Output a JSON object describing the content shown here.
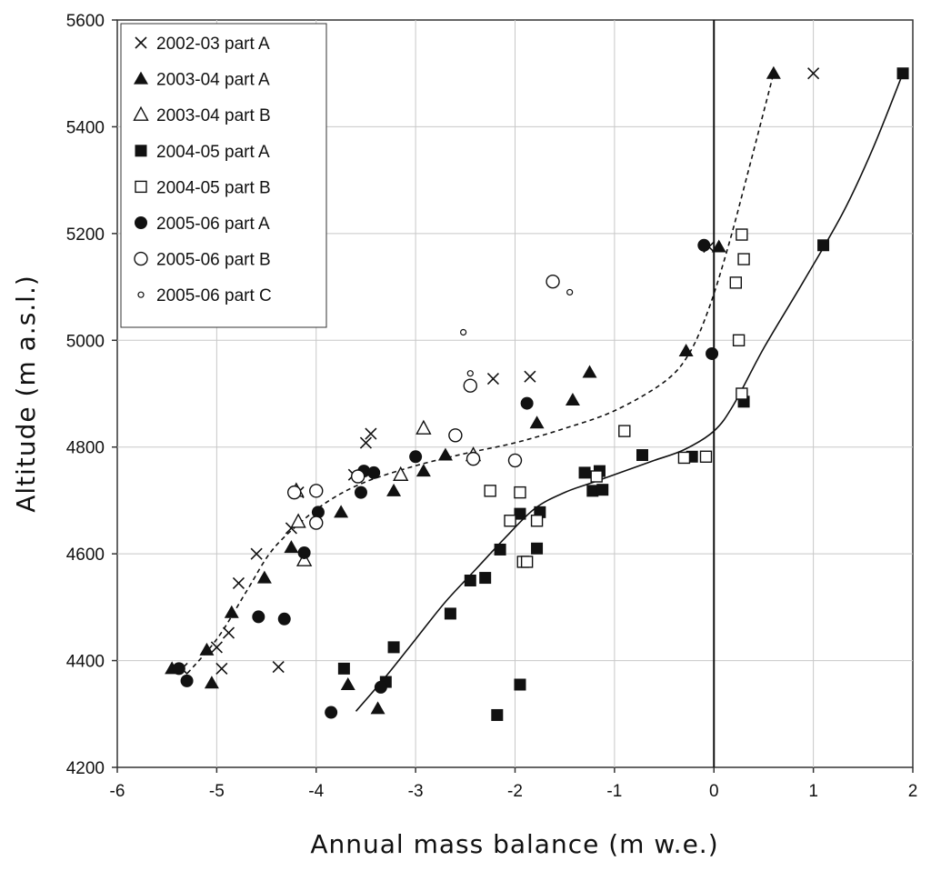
{
  "chart_data": {
    "type": "scatter",
    "xlabel": "Annual mass balance (m w.e.)",
    "ylabel": "Altitude (m a.s.l.)",
    "xlim": [
      -6,
      2
    ],
    "ylim": [
      4200,
      5600
    ],
    "xticks": [
      -6,
      -5,
      -4,
      -3,
      -2,
      -1,
      0,
      1,
      2
    ],
    "yticks": [
      4200,
      4400,
      4600,
      4800,
      5000,
      5200,
      5400,
      5600
    ],
    "grid": true,
    "legend_position": "top-left",
    "vertical_reference_line_x": 0,
    "series": [
      {
        "name": "2002-03 part A",
        "marker": "x",
        "points": [
          [
            -5.35,
            4385
          ],
          [
            -4.95,
            4385
          ],
          [
            -4.38,
            4388
          ],
          [
            -5.0,
            4425
          ],
          [
            -4.88,
            4452
          ],
          [
            -4.78,
            4545
          ],
          [
            -4.6,
            4600
          ],
          [
            -4.25,
            4648
          ],
          [
            -4.18,
            4715
          ],
          [
            -3.62,
            4748
          ],
          [
            -3.5,
            4808
          ],
          [
            -3.45,
            4825
          ],
          [
            -2.22,
            4928
          ],
          [
            -1.85,
            4932
          ],
          [
            -0.05,
            5175
          ],
          [
            1.0,
            5500
          ]
        ]
      },
      {
        "name": "2003-04 part A",
        "marker": "triangle-filled",
        "points": [
          [
            -5.45,
            4385
          ],
          [
            -5.05,
            4358
          ],
          [
            -5.1,
            4420
          ],
          [
            -4.85,
            4490
          ],
          [
            -4.52,
            4555
          ],
          [
            -4.25,
            4612
          ],
          [
            -3.75,
            4678
          ],
          [
            -3.22,
            4718
          ],
          [
            -2.92,
            4755
          ],
          [
            -2.7,
            4785
          ],
          [
            -1.78,
            4845
          ],
          [
            -1.42,
            4888
          ],
          [
            -1.25,
            4940
          ],
          [
            -0.28,
            4980
          ],
          [
            0.05,
            5175
          ],
          [
            0.6,
            5500
          ],
          [
            -3.68,
            4355
          ],
          [
            -3.38,
            4310
          ]
        ]
      },
      {
        "name": "2003-04 part B",
        "marker": "triangle-open",
        "points": [
          [
            -4.2,
            4718
          ],
          [
            -4.18,
            4660
          ],
          [
            -4.12,
            4588
          ],
          [
            -3.15,
            4748
          ],
          [
            -2.92,
            4835
          ],
          [
            -2.42,
            4785
          ]
        ]
      },
      {
        "name": "2004-05 part A",
        "marker": "square-filled",
        "points": [
          [
            -3.72,
            4385
          ],
          [
            -3.3,
            4360
          ],
          [
            -3.22,
            4425
          ],
          [
            -2.65,
            4488
          ],
          [
            -2.45,
            4550
          ],
          [
            -2.3,
            4555
          ],
          [
            -2.18,
            4298
          ],
          [
            -2.15,
            4608
          ],
          [
            -1.95,
            4675
          ],
          [
            -1.95,
            4355
          ],
          [
            -1.78,
            4610
          ],
          [
            -1.75,
            4678
          ],
          [
            -1.3,
            4752
          ],
          [
            -1.22,
            4718
          ],
          [
            -1.15,
            4755
          ],
          [
            -1.12,
            4720
          ],
          [
            -0.72,
            4785
          ],
          [
            -0.22,
            4782
          ],
          [
            0.3,
            4885
          ],
          [
            1.1,
            5178
          ],
          [
            1.9,
            5500
          ]
        ]
      },
      {
        "name": "2004-05 part B",
        "marker": "square-open",
        "points": [
          [
            -2.25,
            4718
          ],
          [
            -2.05,
            4662
          ],
          [
            -1.95,
            4715
          ],
          [
            -1.92,
            4585
          ],
          [
            -1.88,
            4585
          ],
          [
            -1.78,
            4662
          ],
          [
            -1.18,
            4745
          ],
          [
            -0.9,
            4830
          ],
          [
            -0.3,
            4780
          ],
          [
            -0.08,
            4782
          ],
          [
            0.22,
            5108
          ],
          [
            0.25,
            5000
          ],
          [
            0.28,
            4900
          ],
          [
            0.28,
            5198
          ],
          [
            0.3,
            5152
          ]
        ]
      },
      {
        "name": "2005-06 part A",
        "marker": "circle-filled",
        "points": [
          [
            -5.38,
            4385
          ],
          [
            -5.3,
            4362
          ],
          [
            -4.58,
            4482
          ],
          [
            -4.32,
            4478
          ],
          [
            -4.12,
            4602
          ],
          [
            -3.98,
            4678
          ],
          [
            -3.85,
            4303
          ],
          [
            -3.55,
            4715
          ],
          [
            -3.52,
            4755
          ],
          [
            -3.42,
            4752
          ],
          [
            -3.35,
            4350
          ],
          [
            -3.0,
            4782
          ],
          [
            -1.88,
            4882
          ],
          [
            -0.1,
            5178
          ],
          [
            -0.02,
            4975
          ]
        ]
      },
      {
        "name": "2005-06 part B",
        "marker": "circle-open",
        "points": [
          [
            -4.22,
            4715
          ],
          [
            -4.0,
            4718
          ],
          [
            -4.0,
            4658
          ],
          [
            -3.58,
            4745
          ],
          [
            -2.6,
            4822
          ],
          [
            -2.42,
            4778
          ],
          [
            -2.45,
            4915
          ],
          [
            -2.0,
            4775
          ],
          [
            -1.62,
            5110
          ]
        ]
      },
      {
        "name": "2005-06 part C",
        "marker": "circle-small",
        "points": [
          [
            -2.52,
            5015
          ],
          [
            -2.45,
            4938
          ],
          [
            -1.45,
            5090
          ]
        ]
      }
    ],
    "curves": [
      {
        "style": "dashed",
        "points": [
          [
            -5.35,
            4365
          ],
          [
            -5.0,
            4440
          ],
          [
            -4.7,
            4530
          ],
          [
            -4.45,
            4605
          ],
          [
            -4.15,
            4660
          ],
          [
            -3.85,
            4702
          ],
          [
            -3.5,
            4735
          ],
          [
            -3.0,
            4765
          ],
          [
            -2.5,
            4788
          ],
          [
            -2.0,
            4808
          ],
          [
            -1.5,
            4835
          ],
          [
            -1.0,
            4868
          ],
          [
            -0.5,
            4922
          ],
          [
            -0.25,
            4975
          ],
          [
            -0.05,
            5060
          ],
          [
            0.15,
            5180
          ],
          [
            0.35,
            5320
          ],
          [
            0.6,
            5500
          ]
        ]
      },
      {
        "style": "solid",
        "points": [
          [
            -3.6,
            4305
          ],
          [
            -3.3,
            4370
          ],
          [
            -3.0,
            4440
          ],
          [
            -2.7,
            4510
          ],
          [
            -2.4,
            4570
          ],
          [
            -2.1,
            4630
          ],
          [
            -1.8,
            4685
          ],
          [
            -1.5,
            4715
          ],
          [
            -1.2,
            4735
          ],
          [
            -0.9,
            4755
          ],
          [
            -0.6,
            4775
          ],
          [
            -0.3,
            4795
          ],
          [
            0.0,
            4830
          ],
          [
            0.2,
            4880
          ],
          [
            0.5,
            4985
          ],
          [
            0.9,
            5110
          ],
          [
            1.3,
            5240
          ],
          [
            1.6,
            5360
          ],
          [
            1.9,
            5500
          ]
        ]
      }
    ]
  }
}
